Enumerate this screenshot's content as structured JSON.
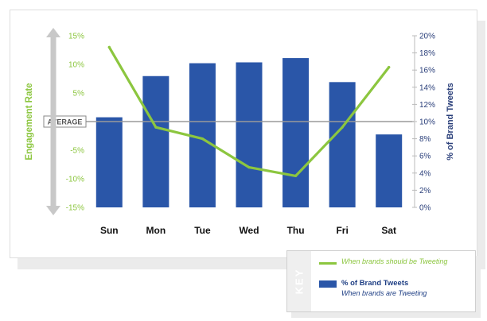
{
  "chart_data": {
    "type": "bar+line",
    "categories": [
      "Sun",
      "Mon",
      "Tue",
      "Wed",
      "Thu",
      "Fri",
      "Sat"
    ],
    "series": [
      {
        "name": "% of Brand Tweets",
        "type": "bar",
        "axis": "right",
        "values": [
          10.5,
          15.3,
          16.8,
          16.9,
          17.4,
          14.6,
          8.5
        ]
      },
      {
        "name": "When brands should be Tweeting",
        "type": "line",
        "axis": "left",
        "values": [
          13.0,
          -1.0,
          -3.0,
          -8.0,
          -9.5,
          -1.0,
          9.5
        ]
      }
    ],
    "ylabel_left": "Engagement Rate",
    "ylabel_right": "% of Brand Tweets",
    "ylim_left": [
      -15,
      15
    ],
    "ylim_right": [
      0,
      20
    ],
    "left_ticks": [
      "15%",
      "10%",
      "5%",
      "",
      "-5%",
      "-10%",
      "-15%"
    ],
    "left_tick_values": [
      15,
      10,
      5,
      0,
      -5,
      -10,
      -15
    ],
    "right_ticks": [
      "20%",
      "18%",
      "16%",
      "14%",
      "12%",
      "10%",
      "8%",
      "6%",
      "4%",
      "2%",
      "0%"
    ],
    "right_tick_values": [
      20,
      18,
      16,
      14,
      12,
      10,
      8,
      6,
      4,
      2,
      0
    ],
    "reference_line": {
      "label": "AVERAGE",
      "value": 0
    },
    "colors": {
      "bar": "#2a56a8",
      "line": "#8cc63f",
      "left_label": "#8cc63f",
      "right_label": "#2a3f7a",
      "average_line": "#9a9a9a"
    }
  },
  "key": {
    "tab_label": "KEY",
    "line_text": "When brands should be Tweeting",
    "bar_title": "% of Brand Tweets",
    "bar_text": "When brands are Tweeting"
  }
}
